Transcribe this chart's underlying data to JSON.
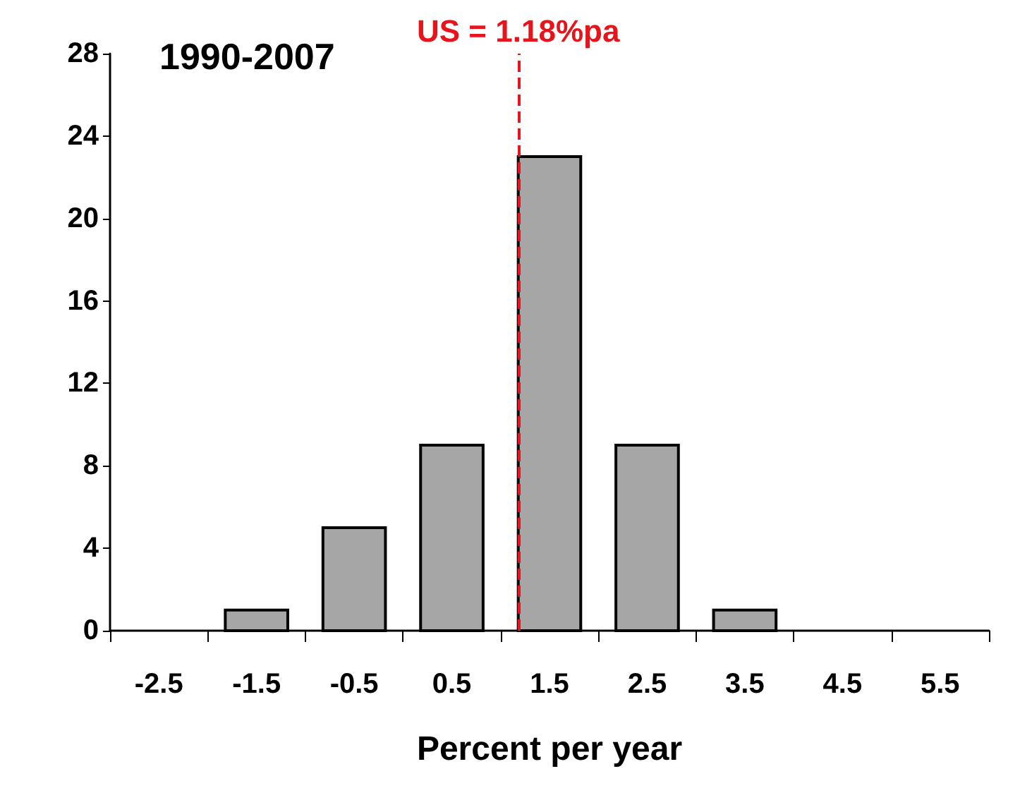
{
  "chart_data": {
    "type": "histogram",
    "title": "1990-2007",
    "xlabel": "Percent per year",
    "bins": [
      -3,
      -2,
      -1,
      0,
      1,
      2,
      3,
      4,
      5,
      6
    ],
    "values": [
      0,
      1,
      5,
      9,
      23,
      9,
      1,
      0,
      0
    ],
    "color": "#a6a6a6",
    "xlim": [
      -3,
      6
    ],
    "xticks": [
      -2.5,
      -1.5,
      -0.5,
      0.5,
      1.5,
      2.5,
      3.5,
      4.5,
      5.5
    ],
    "ylim": [
      0,
      28
    ],
    "yticks": [
      0,
      4,
      8,
      12,
      16,
      20,
      24,
      28
    ],
    "ref_lines": [
      {
        "axis": "x",
        "value": 1.18,
        "label": "US = 1.18%pa",
        "color": "#e8141b",
        "line_style": "dashed"
      }
    ],
    "grid": false
  }
}
